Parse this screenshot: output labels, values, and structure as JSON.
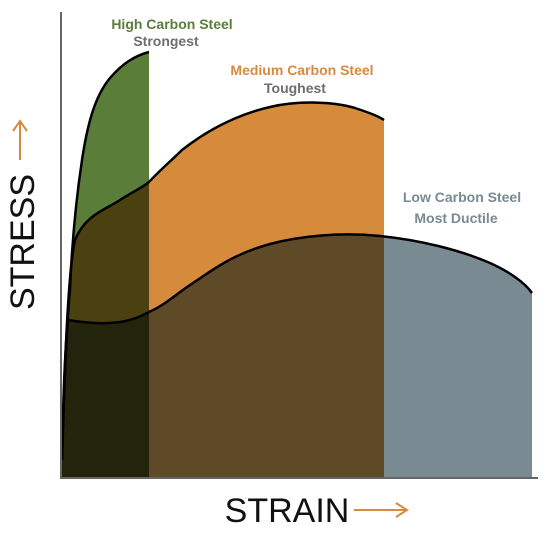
{
  "axes": {
    "x_title": "STRAIN",
    "y_title": "STRESS",
    "arrow_color": "#d68a3c"
  },
  "materials": [
    {
      "name": "High Carbon Steel",
      "property": "Strongest",
      "name_color": "#5a7d3a",
      "property_color": "#6e6e6e",
      "fill_color": "#5a7d3a"
    },
    {
      "name": "Medium Carbon Steel",
      "property": "Toughest",
      "name_color": "#d68a3c",
      "property_color": "#6e6e6e",
      "fill_color": "#d68a3c"
    },
    {
      "name": "Low Carbon Steel",
      "property": "Most Ductile",
      "name_color": "#7a8a93",
      "property_color": "#7a8a93",
      "fill_color": "#7a8a93"
    }
  ],
  "overlap_colors": {
    "high_and_medium": "#4a4010",
    "medium_and_low": "#5f4a28",
    "all_three": "#23240c"
  }
}
